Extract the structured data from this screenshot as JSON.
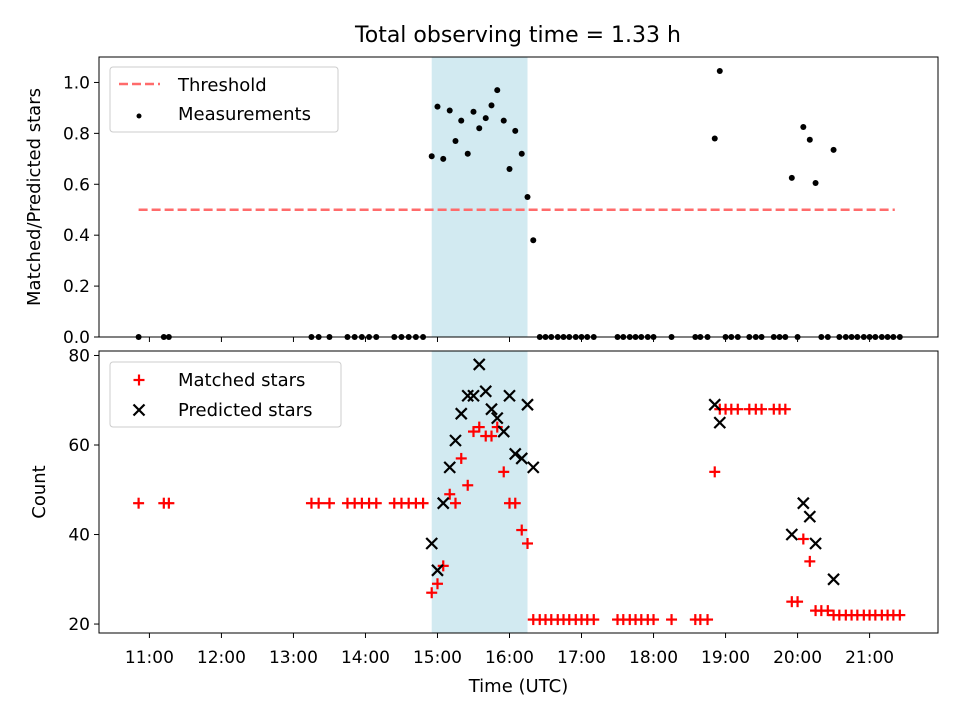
{
  "figure": {
    "title": "Total observing time = 1.33 h"
  },
  "chart_data": [
    {
      "type": "scatter",
      "title": "Total observing time = 1.33 h",
      "xlabel": "",
      "ylabel": "Matched/Predicted stars",
      "xlim": [
        10.3,
        21.95
      ],
      "ylim": [
        0,
        1.1
      ],
      "yticks": [
        "0.0",
        "0.2",
        "0.4",
        "0.6",
        "0.8",
        "1.0"
      ],
      "grid": false,
      "legend": "top-left",
      "highlight_span": {
        "x0": 14.92,
        "x1": 16.25,
        "color": "#add8e6"
      },
      "threshold": {
        "name": "Threshold",
        "value": 0.5,
        "x": [
          10.85,
          21.35
        ],
        "color": "#ff6b6b"
      },
      "series": [
        {
          "name": "Measurements",
          "color": "#000000",
          "points": [
            [
              10.85,
              0
            ],
            [
              11.2,
              0
            ],
            [
              11.27,
              0
            ],
            [
              13.25,
              0
            ],
            [
              13.35,
              0
            ],
            [
              13.5,
              0
            ],
            [
              13.75,
              0
            ],
            [
              13.85,
              0
            ],
            [
              13.95,
              0
            ],
            [
              14.05,
              0
            ],
            [
              14.15,
              0
            ],
            [
              14.4,
              0
            ],
            [
              14.5,
              0
            ],
            [
              14.6,
              0
            ],
            [
              14.7,
              0
            ],
            [
              14.8,
              0
            ],
            [
              14.92,
              0.71
            ],
            [
              15.0,
              0.905
            ],
            [
              15.08,
              0.7
            ],
            [
              15.17,
              0.89
            ],
            [
              15.25,
              0.77
            ],
            [
              15.33,
              0.85
            ],
            [
              15.42,
              0.72
            ],
            [
              15.5,
              0.885
            ],
            [
              15.58,
              0.82
            ],
            [
              15.67,
              0.86
            ],
            [
              15.75,
              0.91
            ],
            [
              15.83,
              0.97
            ],
            [
              15.92,
              0.85
            ],
            [
              16.0,
              0.66
            ],
            [
              16.08,
              0.81
            ],
            [
              16.17,
              0.72
            ],
            [
              16.25,
              0.55
            ],
            [
              16.33,
              0.38
            ],
            [
              16.42,
              0
            ],
            [
              16.5,
              0
            ],
            [
              16.58,
              0
            ],
            [
              16.67,
              0
            ],
            [
              16.75,
              0
            ],
            [
              16.83,
              0
            ],
            [
              16.92,
              0
            ],
            [
              17.0,
              0
            ],
            [
              17.08,
              0
            ],
            [
              17.17,
              0
            ],
            [
              17.5,
              0
            ],
            [
              17.58,
              0
            ],
            [
              17.67,
              0
            ],
            [
              17.75,
              0
            ],
            [
              17.83,
              0
            ],
            [
              17.92,
              0
            ],
            [
              18.0,
              0
            ],
            [
              18.25,
              0
            ],
            [
              18.58,
              0
            ],
            [
              18.65,
              0
            ],
            [
              18.75,
              0
            ],
            [
              18.85,
              0.78
            ],
            [
              18.92,
              1.045
            ],
            [
              19.0,
              0
            ],
            [
              19.08,
              0
            ],
            [
              19.17,
              0
            ],
            [
              19.33,
              0
            ],
            [
              19.42,
              0
            ],
            [
              19.5,
              0
            ],
            [
              19.67,
              0
            ],
            [
              19.75,
              0
            ],
            [
              19.83,
              0
            ],
            [
              19.92,
              0.625
            ],
            [
              20.0,
              0
            ],
            [
              20.08,
              0.825
            ],
            [
              20.17,
              0.775
            ],
            [
              20.25,
              0.605
            ],
            [
              20.33,
              0
            ],
            [
              20.42,
              0
            ],
            [
              20.5,
              0.735
            ],
            [
              20.58,
              0
            ],
            [
              20.67,
              0
            ],
            [
              20.75,
              0
            ],
            [
              20.83,
              0
            ],
            [
              20.92,
              0
            ],
            [
              21.0,
              0
            ],
            [
              21.08,
              0
            ],
            [
              21.17,
              0
            ],
            [
              21.25,
              0
            ],
            [
              21.33,
              0
            ],
            [
              21.42,
              0
            ]
          ]
        }
      ]
    },
    {
      "type": "scatter",
      "title": "",
      "xlabel": "Time (UTC)",
      "ylabel": "Count",
      "xlim": [
        10.3,
        21.95
      ],
      "ylim": [
        18,
        81
      ],
      "xticks": [
        "11:00",
        "12:00",
        "13:00",
        "14:00",
        "15:00",
        "16:00",
        "17:00",
        "18:00",
        "19:00",
        "20:00",
        "21:00"
      ],
      "yticks": [
        "20",
        "40",
        "60",
        "80"
      ],
      "grid": false,
      "legend": "top-left",
      "highlight_span": {
        "x0": 14.92,
        "x1": 16.25,
        "color": "#add8e6"
      },
      "series": [
        {
          "name": "Matched stars",
          "marker": "+",
          "color": "#ff0000",
          "points": [
            [
              10.85,
              47
            ],
            [
              11.2,
              47
            ],
            [
              11.27,
              47
            ],
            [
              13.25,
              47
            ],
            [
              13.35,
              47
            ],
            [
              13.5,
              47
            ],
            [
              13.75,
              47
            ],
            [
              13.85,
              47
            ],
            [
              13.95,
              47
            ],
            [
              14.05,
              47
            ],
            [
              14.15,
              47
            ],
            [
              14.4,
              47
            ],
            [
              14.5,
              47
            ],
            [
              14.6,
              47
            ],
            [
              14.7,
              47
            ],
            [
              14.8,
              47
            ],
            [
              14.92,
              27
            ],
            [
              15.0,
              29
            ],
            [
              15.08,
              33
            ],
            [
              15.17,
              49
            ],
            [
              15.25,
              47
            ],
            [
              15.33,
              57
            ],
            [
              15.42,
              51
            ],
            [
              15.5,
              63
            ],
            [
              15.58,
              64
            ],
            [
              15.67,
              62
            ],
            [
              15.75,
              62
            ],
            [
              15.83,
              64
            ],
            [
              15.92,
              54
            ],
            [
              16.0,
              47
            ],
            [
              16.08,
              47
            ],
            [
              16.17,
              41
            ],
            [
              16.25,
              38
            ],
            [
              16.33,
              21
            ],
            [
              16.42,
              21
            ],
            [
              16.5,
              21
            ],
            [
              16.58,
              21
            ],
            [
              16.67,
              21
            ],
            [
              16.75,
              21
            ],
            [
              16.83,
              21
            ],
            [
              16.92,
              21
            ],
            [
              17.0,
              21
            ],
            [
              17.08,
              21
            ],
            [
              17.17,
              21
            ],
            [
              17.5,
              21
            ],
            [
              17.58,
              21
            ],
            [
              17.67,
              21
            ],
            [
              17.75,
              21
            ],
            [
              17.83,
              21
            ],
            [
              17.92,
              21
            ],
            [
              18.0,
              21
            ],
            [
              18.25,
              21
            ],
            [
              18.58,
              21
            ],
            [
              18.65,
              21
            ],
            [
              18.75,
              21
            ],
            [
              18.85,
              54
            ],
            [
              18.92,
              68
            ],
            [
              19.0,
              68
            ],
            [
              19.08,
              68
            ],
            [
              19.17,
              68
            ],
            [
              19.33,
              68
            ],
            [
              19.42,
              68
            ],
            [
              19.5,
              68
            ],
            [
              19.67,
              68
            ],
            [
              19.75,
              68
            ],
            [
              19.83,
              68
            ],
            [
              19.92,
              25
            ],
            [
              20.0,
              25
            ],
            [
              20.08,
              39
            ],
            [
              20.17,
              34
            ],
            [
              20.25,
              23
            ],
            [
              20.33,
              23
            ],
            [
              20.42,
              23
            ],
            [
              20.5,
              22
            ],
            [
              20.58,
              22
            ],
            [
              20.67,
              22
            ],
            [
              20.75,
              22
            ],
            [
              20.83,
              22
            ],
            [
              20.92,
              22
            ],
            [
              21.0,
              22
            ],
            [
              21.08,
              22
            ],
            [
              21.17,
              22
            ],
            [
              21.25,
              22
            ],
            [
              21.33,
              22
            ],
            [
              21.42,
              22
            ]
          ]
        },
        {
          "name": "Predicted stars",
          "marker": "x",
          "color": "#000000",
          "points": [
            [
              14.92,
              38
            ],
            [
              15.0,
              32
            ],
            [
              15.08,
              47
            ],
            [
              15.17,
              55
            ],
            [
              15.25,
              61
            ],
            [
              15.33,
              67
            ],
            [
              15.42,
              71
            ],
            [
              15.5,
              71
            ],
            [
              15.58,
              78
            ],
            [
              15.67,
              72
            ],
            [
              15.75,
              68
            ],
            [
              15.83,
              66
            ],
            [
              15.92,
              63
            ],
            [
              16.0,
              71
            ],
            [
              16.08,
              58
            ],
            [
              16.17,
              57
            ],
            [
              16.25,
              69
            ],
            [
              16.33,
              55
            ],
            [
              18.85,
              69
            ],
            [
              18.92,
              65
            ],
            [
              19.92,
              40
            ],
            [
              20.08,
              47
            ],
            [
              20.17,
              44
            ],
            [
              20.25,
              38
            ],
            [
              20.5,
              30
            ]
          ]
        }
      ]
    }
  ]
}
